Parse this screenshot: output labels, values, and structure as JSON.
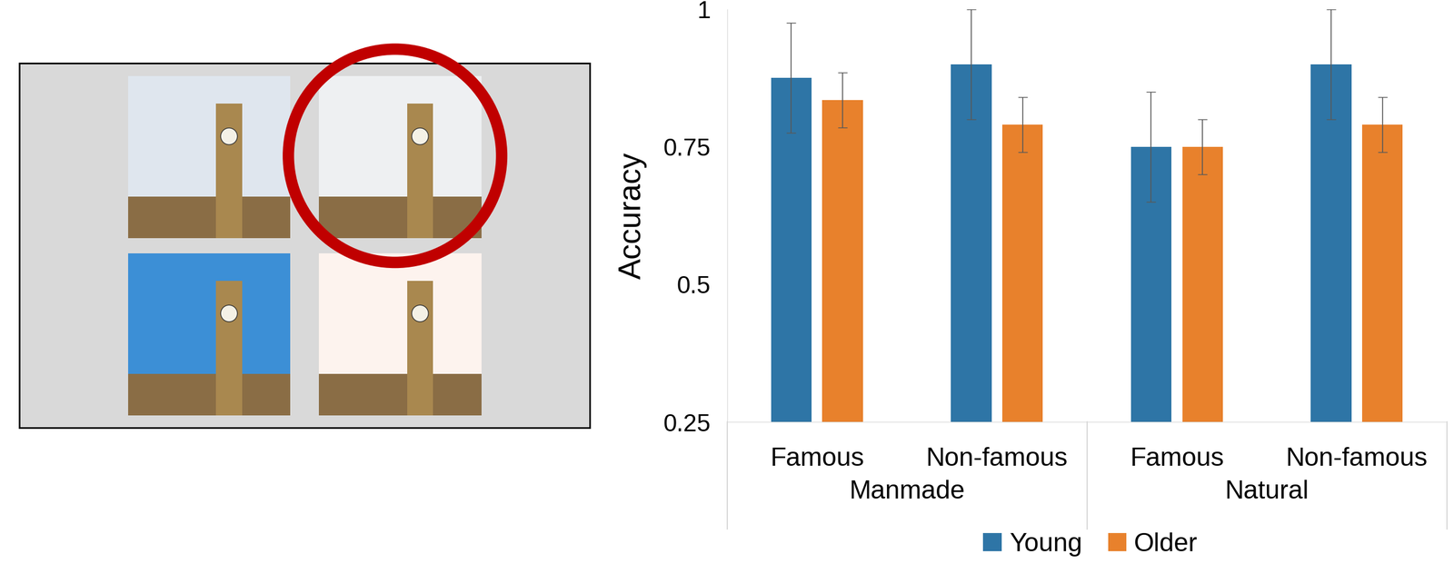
{
  "chart_data": {
    "type": "bar",
    "y_label": "Accuracy",
    "categories": [
      "Famous",
      "Non-famous",
      "Famous",
      "Non-famous"
    ],
    "groups": [
      "Manmade",
      "Manmade",
      "Natural",
      "Natural"
    ],
    "series": [
      {
        "name": "Young",
        "color": "#2e75a6",
        "values": [
          0.875,
          0.9,
          0.75,
          0.9
        ],
        "errors": [
          0.1,
          0.1,
          0.1,
          0.1
        ]
      },
      {
        "name": "Older",
        "color": "#e8812c",
        "values": [
          0.835,
          0.79,
          0.75,
          0.79
        ],
        "errors": [
          0.05,
          0.05,
          0.05,
          0.05
        ]
      }
    ],
    "ylim": [
      0.25,
      1
    ],
    "yticks": [
      0.25,
      0.5,
      0.75,
      1
    ],
    "grid": false,
    "legend": "lower center"
  }
}
